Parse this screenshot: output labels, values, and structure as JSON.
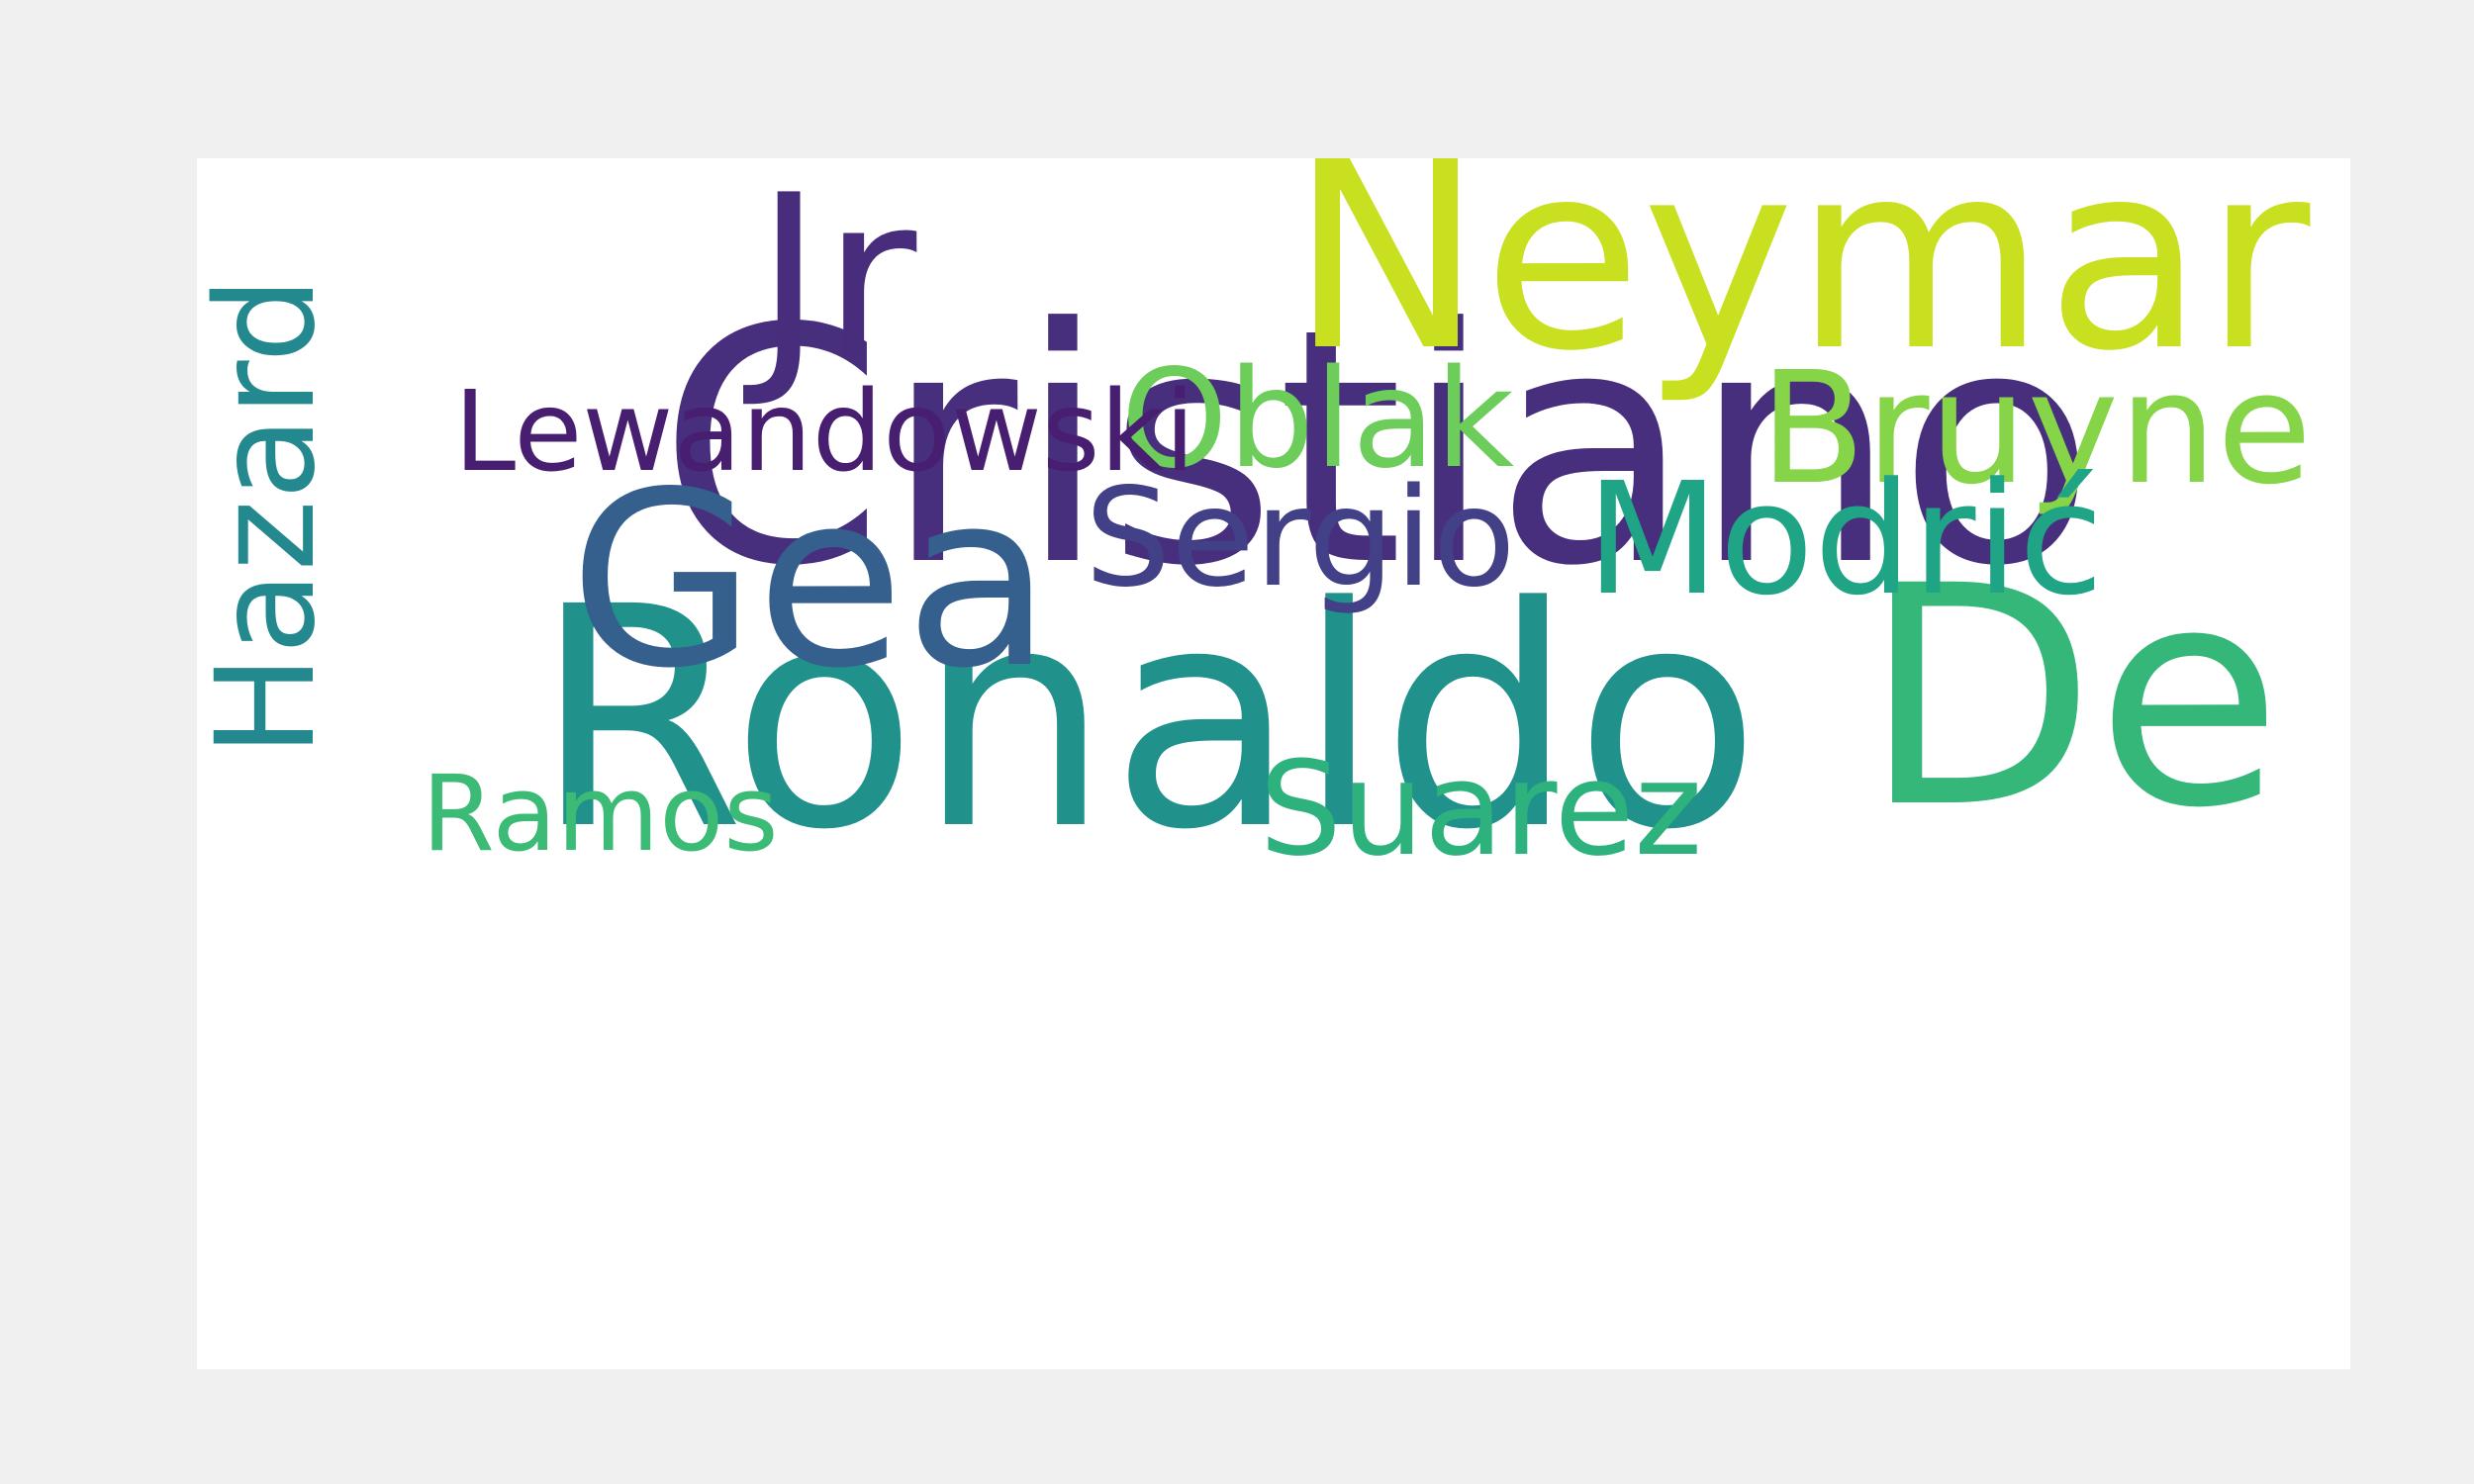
{
  "word_cloud": {
    "words": [
      {
        "key": "cristiano",
        "text": "Cristiano",
        "color": "#472f7d",
        "rotated": false
      },
      {
        "key": "ronaldo",
        "text": "Ronaldo",
        "color": "#21918c",
        "rotated": false
      },
      {
        "key": "de",
        "text": "De",
        "color": "#35b779",
        "rotated": false
      },
      {
        "key": "neymar",
        "text": "Neymar",
        "color": "#c8e020",
        "rotated": false
      },
      {
        "key": "jr",
        "text": "Jr",
        "color": "#472d7b",
        "rotated": false
      },
      {
        "key": "gea",
        "text": "Gea",
        "color": "#355f8d",
        "rotated": false
      },
      {
        "key": "hazard",
        "text": "Hazard",
        "color": "#23898e",
        "rotated": true
      },
      {
        "key": "bruyne",
        "text": "Bruyne",
        "color": "#86d549",
        "rotated": false
      },
      {
        "key": "modric",
        "text": "Modrić",
        "color": "#20a486",
        "rotated": false
      },
      {
        "key": "suarez",
        "text": "Suarez",
        "color": "#2db27d",
        "rotated": false
      },
      {
        "key": "oblak",
        "text": "Oblak",
        "color": "#6ccd5a",
        "rotated": false
      },
      {
        "key": "ramos",
        "text": "Ramos",
        "color": "#3bbb75",
        "rotated": false
      },
      {
        "key": "sergio",
        "text": "Sergio",
        "color": "#424086",
        "rotated": false
      },
      {
        "key": "lewandowski",
        "text": "Lewandowski",
        "color": "#481f70",
        "rotated": false
      }
    ]
  }
}
